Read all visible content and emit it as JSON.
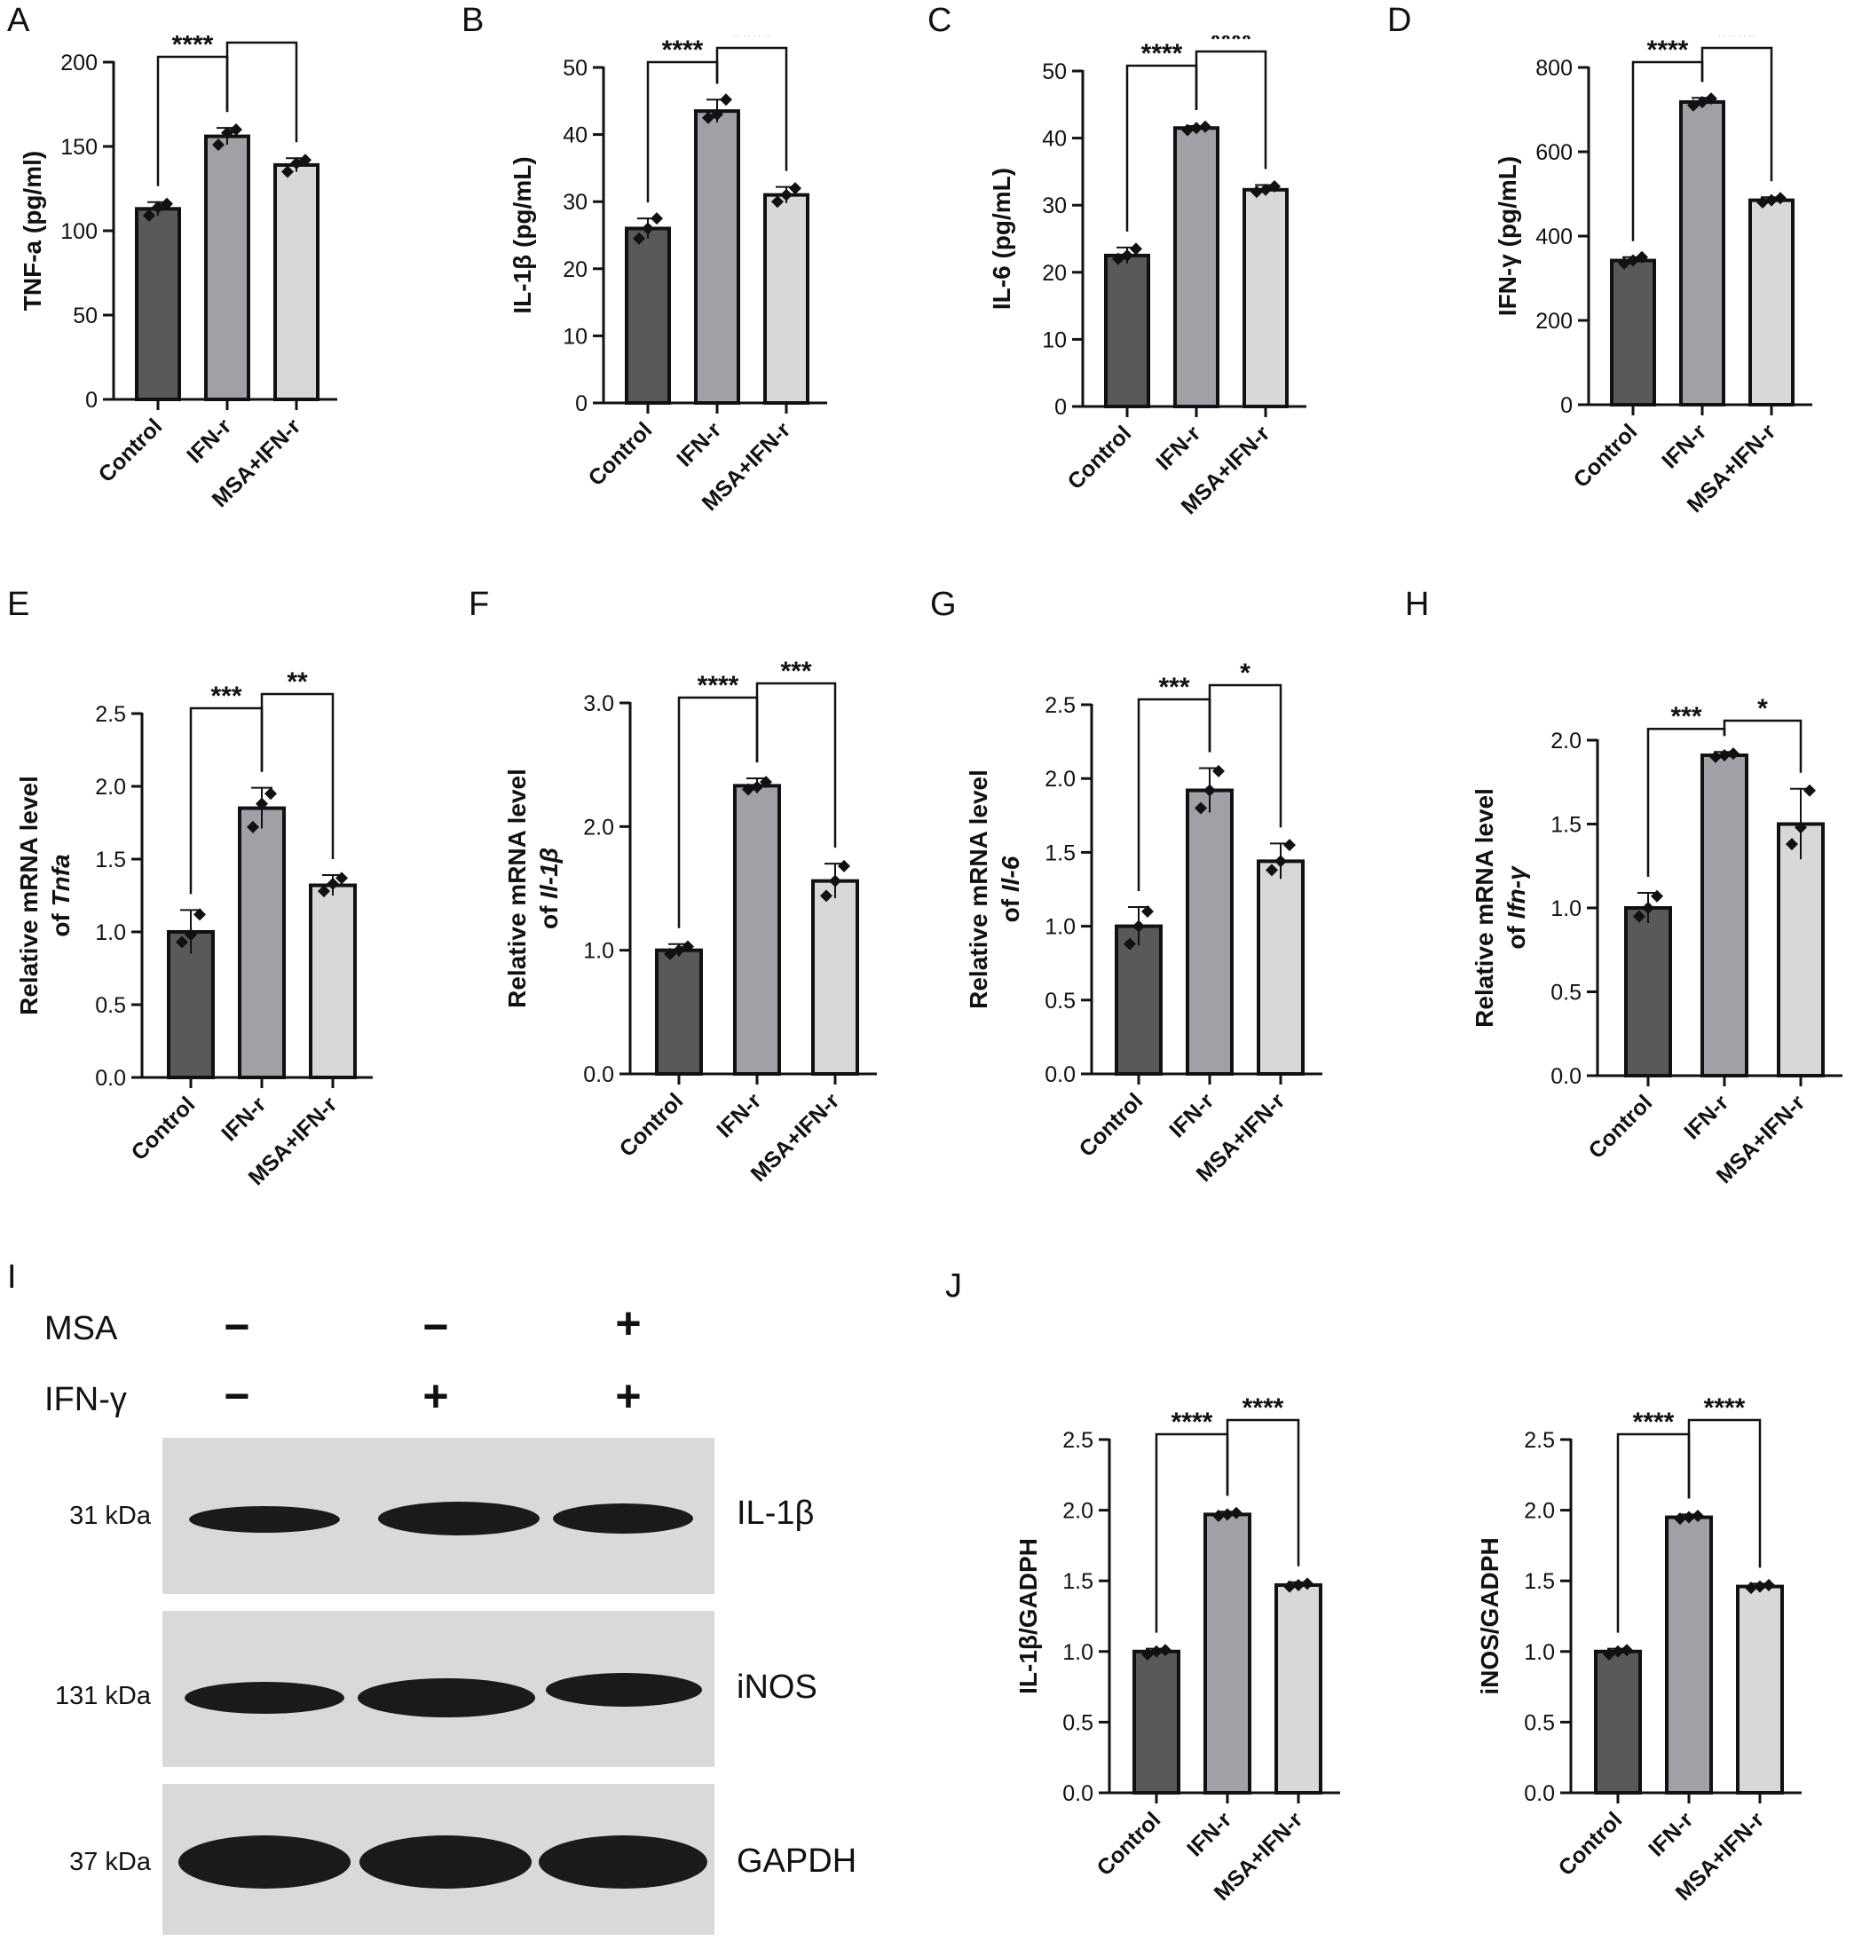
{
  "colors": {
    "control": "#595959",
    "ifn": "#a0a0a6",
    "msa": "#d8d8d8",
    "ink": "#111111",
    "blot_bg": "#d9d9d9",
    "band": "#1a1a1a"
  },
  "panel_letters": [
    "A",
    "B",
    "C",
    "D",
    "E",
    "F",
    "G",
    "H",
    "I",
    "J"
  ],
  "chart_data": [
    {
      "id": "A",
      "type": "bar",
      "categories": [
        "Control",
        "IFN-r",
        "MSA+IFN-r"
      ],
      "values": [
        113,
        156,
        139
      ],
      "errors": [
        4,
        5,
        4
      ],
      "points": [
        [
          109,
          114,
          116
        ],
        [
          151,
          158,
          160
        ],
        [
          135,
          140,
          142
        ]
      ],
      "ylabel": "TNF-a (pg/ml)",
      "ylabel_italic": "",
      "ylabel_line1": "",
      "ylim": [
        0,
        200
      ],
      "ticks": [
        0,
        50,
        100,
        150,
        200
      ],
      "tick_labels": [
        "0",
        "50",
        "100",
        "150",
        "200"
      ],
      "significance": [
        {
          "from": 0,
          "to": 1,
          "label": "****"
        },
        {
          "from": 1,
          "to": 2,
          "label": "**"
        }
      ]
    },
    {
      "id": "B",
      "type": "bar",
      "categories": [
        "Control",
        "IFN-r",
        "MSA+IFN-r"
      ],
      "values": [
        26,
        43.5,
        31
      ],
      "errors": [
        1.5,
        1.7,
        1.2
      ],
      "points": [
        [
          24.5,
          26,
          27.5
        ],
        [
          42.5,
          43,
          45.2
        ],
        [
          30,
          31,
          32
        ]
      ],
      "ylabel": "IL-1β (pg/mL)",
      "ylabel_italic": "",
      "ylabel_line1": "",
      "ylim": [
        0,
        50
      ],
      "ticks": [
        0,
        10,
        20,
        30,
        40,
        50
      ],
      "tick_labels": [
        "0",
        "10",
        "20",
        "30",
        "40",
        "50"
      ],
      "significance": [
        {
          "from": 0,
          "to": 1,
          "label": "****"
        },
        {
          "from": 1,
          "to": 2,
          "label": "****"
        }
      ]
    },
    {
      "id": "C",
      "type": "bar",
      "categories": [
        "Control",
        "IFN-r",
        "MSA+IFN-r"
      ],
      "values": [
        22.5,
        41.5,
        32.3
      ],
      "errors": [
        1.2,
        0.3,
        0.7
      ],
      "points": [
        [
          22,
          22.5,
          23.5
        ],
        [
          41.2,
          41.5,
          41.7
        ],
        [
          32,
          32.3,
          32.8
        ]
      ],
      "ylabel": "IL-6 (pg/mL)",
      "ylabel_italic": "",
      "ylabel_line1": "",
      "ylim": [
        0,
        50
      ],
      "ticks": [
        0,
        10,
        20,
        30,
        40,
        50
      ],
      "tick_labels": [
        "0",
        "10",
        "20",
        "30",
        "40",
        "50"
      ],
      "significance": [
        {
          "from": 0,
          "to": 1,
          "label": "****"
        },
        {
          "from": 1,
          "to": 2,
          "label": "****"
        }
      ]
    },
    {
      "id": "D",
      "type": "bar",
      "categories": [
        "Control",
        "IFN-r",
        "MSA+IFN-r"
      ],
      "values": [
        342,
        718,
        485
      ],
      "errors": [
        8,
        10,
        7
      ],
      "points": [
        [
          335,
          342,
          350
        ],
        [
          710,
          718,
          726
        ],
        [
          480,
          485,
          490
        ]
      ],
      "ylabel": "IFN-γ (pg/mL)",
      "ylabel_italic": "",
      "ylabel_line1": "",
      "ylim": [
        0,
        800
      ],
      "ticks": [
        0,
        200,
        400,
        600,
        800
      ],
      "tick_labels": [
        "0",
        "200",
        "400",
        "600",
        "800"
      ],
      "significance": [
        {
          "from": 0,
          "to": 1,
          "label": "****"
        },
        {
          "from": 1,
          "to": 2,
          "label": "****"
        }
      ]
    },
    {
      "id": "E",
      "type": "bar",
      "categories": [
        "Control",
        "IFN-r",
        "MSA+IFN-r"
      ],
      "values": [
        1.0,
        1.85,
        1.32
      ],
      "errors": [
        0.15,
        0.14,
        0.07
      ],
      "points": [
        [
          0.93,
          0.98,
          1.12
        ],
        [
          1.72,
          1.88,
          1.95
        ],
        [
          1.28,
          1.33,
          1.37
        ]
      ],
      "ylabel": "of ",
      "ylabel_italic": "Tnfa",
      "ylabel_line1": "Relative mRNA level",
      "ylim": [
        0,
        2.5
      ],
      "ticks": [
        0,
        0.5,
        1.0,
        1.5,
        2.0,
        2.5
      ],
      "tick_labels": [
        "0.0",
        "0.5",
        "1.0",
        "1.5",
        "2.0",
        "2.5"
      ],
      "significance": [
        {
          "from": 0,
          "to": 1,
          "label": "***"
        },
        {
          "from": 1,
          "to": 2,
          "label": "**"
        }
      ]
    },
    {
      "id": "F",
      "type": "bar",
      "categories": [
        "Control",
        "IFN-r",
        "MSA+IFN-r"
      ],
      "values": [
        1.0,
        2.33,
        1.56
      ],
      "errors": [
        0.05,
        0.06,
        0.14
      ],
      "points": [
        [
          0.97,
          1.0,
          1.03
        ],
        [
          2.3,
          2.32,
          2.36
        ],
        [
          1.44,
          1.56,
          1.68
        ]
      ],
      "ylabel": "of ",
      "ylabel_italic": "Il-1β",
      "ylabel_line1": "Relative mRNA level",
      "ylim": [
        0,
        3.0
      ],
      "ticks": [
        0,
        1.0,
        2.0,
        3.0
      ],
      "tick_labels": [
        "0.0",
        "1.0",
        "2.0",
        "3.0"
      ],
      "significance": [
        {
          "from": 0,
          "to": 1,
          "label": "****"
        },
        {
          "from": 1,
          "to": 2,
          "label": "***"
        }
      ]
    },
    {
      "id": "G",
      "type": "bar",
      "categories": [
        "Control",
        "IFN-r",
        "MSA+IFN-r"
      ],
      "values": [
        1.0,
        1.92,
        1.44
      ],
      "errors": [
        0.13,
        0.15,
        0.12
      ],
      "points": [
        [
          0.88,
          1.0,
          1.1
        ],
        [
          1.8,
          1.92,
          2.05
        ],
        [
          1.38,
          1.44,
          1.55
        ]
      ],
      "ylabel": "of ",
      "ylabel_italic": "Il-6",
      "ylabel_line1": "Relative mRNA level",
      "ylim": [
        0,
        2.5
      ],
      "ticks": [
        0,
        0.5,
        1.0,
        1.5,
        2.0,
        2.5
      ],
      "tick_labels": [
        "0.0",
        "0.5",
        "1.0",
        "1.5",
        "2.0",
        "2.5"
      ],
      "significance": [
        {
          "from": 0,
          "to": 1,
          "label": "***"
        },
        {
          "from": 1,
          "to": 2,
          "label": "*"
        }
      ]
    },
    {
      "id": "H",
      "type": "bar",
      "categories": [
        "Control",
        "IFN-r",
        "MSA+IFN-r"
      ],
      "values": [
        1.0,
        1.91,
        1.5
      ],
      "errors": [
        0.09,
        0.02,
        0.21
      ],
      "points": [
        [
          0.95,
          1.0,
          1.07
        ],
        [
          1.9,
          1.91,
          1.92
        ],
        [
          1.38,
          1.48,
          1.7
        ]
      ],
      "ylabel": "of ",
      "ylabel_italic": "Ifn-γ",
      "ylabel_line1": "Relative mRNA level",
      "ylim": [
        0,
        2.0
      ],
      "ticks": [
        0,
        0.5,
        1.0,
        1.5,
        2.0
      ],
      "tick_labels": [
        "0.0",
        "0.5",
        "1.0",
        "1.5",
        "2.0"
      ],
      "significance": [
        {
          "from": 0,
          "to": 1,
          "label": "***"
        },
        {
          "from": 1,
          "to": 2,
          "label": "*"
        }
      ]
    },
    {
      "id": "J1",
      "type": "bar",
      "categories": [
        "Control",
        "IFN-r",
        "MSA+IFN-r"
      ],
      "values": [
        1.0,
        1.97,
        1.47
      ],
      "errors": [
        0.02,
        0.02,
        0.02
      ],
      "points": [
        [
          0.98,
          1.0,
          1.01
        ],
        [
          1.96,
          1.97,
          1.98
        ],
        [
          1.46,
          1.47,
          1.48
        ]
      ],
      "ylabel": "IL-1β/GADPH",
      "ylabel_italic": "",
      "ylabel_line1": "",
      "ylim": [
        0,
        2.5
      ],
      "ticks": [
        0,
        0.5,
        1.0,
        1.5,
        2.0,
        2.5
      ],
      "tick_labels": [
        "0.0",
        "0.5",
        "1.0",
        "1.5",
        "2.0",
        "2.5"
      ],
      "significance": [
        {
          "from": 0,
          "to": 1,
          "label": "****"
        },
        {
          "from": 1,
          "to": 2,
          "label": "****"
        }
      ]
    },
    {
      "id": "J2",
      "type": "bar",
      "categories": [
        "Control",
        "IFN-r",
        "MSA+IFN-r"
      ],
      "values": [
        1.0,
        1.95,
        1.46
      ],
      "errors": [
        0.02,
        0.02,
        0.02
      ],
      "points": [
        [
          0.98,
          1.0,
          1.01
        ],
        [
          1.94,
          1.95,
          1.96
        ],
        [
          1.45,
          1.46,
          1.47
        ]
      ],
      "ylabel": "iNOS/GADPH",
      "ylabel_italic": "",
      "ylabel_line1": "",
      "ylim": [
        0,
        2.5
      ],
      "ticks": [
        0,
        0.5,
        1.0,
        1.5,
        2.0,
        2.5
      ],
      "tick_labels": [
        "0.0",
        "0.5",
        "1.0",
        "1.5",
        "2.0",
        "2.5"
      ],
      "significance": [
        {
          "from": 0,
          "to": 1,
          "label": "****"
        },
        {
          "from": 1,
          "to": 2,
          "label": "****"
        }
      ]
    }
  ],
  "western_blot": {
    "row_labels": [
      "MSA",
      "IFN-γ"
    ],
    "msa_signs": [
      "−",
      "−",
      "+"
    ],
    "ifn_signs": [
      "−",
      "+",
      "+"
    ],
    "bands": [
      {
        "name": "IL-1β",
        "kda": "31 kDa"
      },
      {
        "name": "iNOS",
        "kda": "131 kDa"
      },
      {
        "name": "GAPDH",
        "kda": "37 kDa"
      }
    ]
  }
}
